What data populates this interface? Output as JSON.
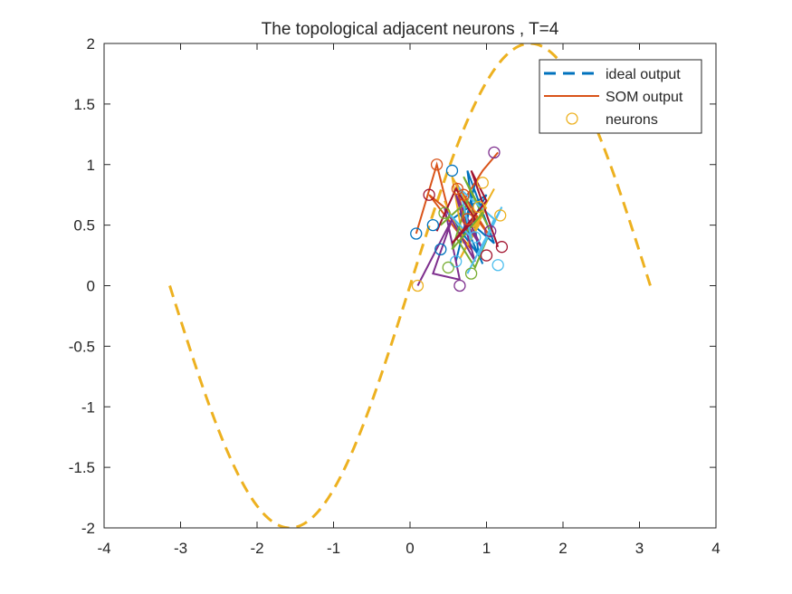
{
  "chart_data": {
    "type": "line",
    "title": "The topological adjacent neurons , T=4",
    "xlabel": "",
    "ylabel": "",
    "xlim": [
      -4,
      4
    ],
    "ylim": [
      -2,
      2
    ],
    "xticks": [
      "-4",
      "-3",
      "-2",
      "-1",
      "0",
      "1",
      "2",
      "3",
      "4"
    ],
    "yticks": [
      "2",
      "1.5",
      "1",
      "0.5",
      "0",
      "-0.5",
      "-1",
      "-1.5",
      "-2"
    ],
    "grid": false,
    "legend_position": "top-right",
    "legend": [
      {
        "label": "ideal output",
        "style": "dashed",
        "color": "#0072BD"
      },
      {
        "label": "SOM output",
        "style": "solid",
        "color": "#D95319"
      },
      {
        "label": "neurons",
        "style": "circle",
        "color": "#EDB120"
      }
    ],
    "ideal_curve": {
      "function": "2*sin(x)",
      "x_range": [
        -3.1416,
        3.1416
      ],
      "color": "#EDB120",
      "style": "dashed"
    },
    "som_series": [
      {
        "color": "#0072BD",
        "x": [
          0.6,
          0.85,
          0.7,
          1.0,
          0.55,
          0.9,
          0.75,
          1.1,
          0.65,
          0.95
        ],
        "y": [
          0.2,
          0.85,
          0.4,
          0.75,
          0.55,
          0.25,
          0.95,
          0.35,
          0.6,
          0.18
        ]
      },
      {
        "color": "#D95319",
        "x": [
          0.08,
          0.35,
          0.5,
          0.25,
          0.8,
          0.6,
          1.05,
          0.7,
          0.95,
          1.15
        ],
        "y": [
          0.43,
          1.0,
          0.62,
          0.75,
          0.3,
          0.85,
          0.4,
          0.7,
          0.95,
          1.1
        ]
      },
      {
        "color": "#EDB120",
        "x": [
          0.45,
          0.7,
          0.55,
          0.9,
          0.65,
          1.0,
          0.8,
          1.1
        ],
        "y": [
          0.7,
          0.35,
          0.9,
          0.5,
          0.22,
          0.65,
          0.45,
          0.8
        ]
      },
      {
        "color": "#7E2F8E",
        "x": [
          0.1,
          0.55,
          0.3,
          0.65,
          0.45,
          0.85,
          0.6,
          0.95,
          0.75
        ],
        "y": [
          0.0,
          0.55,
          0.1,
          0.05,
          0.65,
          0.2,
          0.75,
          0.3,
          0.5
        ]
      },
      {
        "color": "#77AC30",
        "x": [
          0.4,
          0.75,
          0.55,
          0.95,
          0.7,
          1.05,
          0.85,
          0.6
        ],
        "y": [
          0.5,
          0.7,
          0.3,
          0.6,
          0.9,
          0.45,
          0.15,
          0.4
        ]
      },
      {
        "color": "#4DBEEE",
        "x": [
          0.5,
          0.8,
          0.65,
          1.1,
          0.9,
          1.2,
          0.75
        ],
        "y": [
          0.6,
          0.4,
          0.8,
          0.55,
          0.25,
          0.65,
          0.1
        ]
      },
      {
        "color": "#A2142F",
        "x": [
          0.35,
          0.6,
          0.85,
          0.55,
          1.0,
          0.8,
          1.15
        ],
        "y": [
          0.45,
          0.8,
          0.55,
          0.35,
          0.7,
          0.95,
          0.32
        ]
      }
    ],
    "neurons": {
      "x": [
        0.08,
        0.35,
        0.1,
        0.65,
        0.8,
        1.15,
        1.2,
        0.55,
        0.7,
        0.95,
        1.1,
        0.45,
        0.6,
        0.25,
        0.4,
        0.75,
        0.9,
        1.05,
        0.5,
        0.85,
        1.0,
        0.3,
        0.62,
        1.18
      ],
      "y": [
        0.43,
        1.0,
        0.0,
        0.0,
        0.1,
        0.17,
        0.32,
        0.95,
        0.75,
        0.85,
        1.1,
        0.6,
        0.2,
        0.75,
        0.3,
        0.55,
        0.65,
        0.45,
        0.15,
        0.4,
        0.25,
        0.5,
        0.8,
        0.58
      ]
    }
  }
}
